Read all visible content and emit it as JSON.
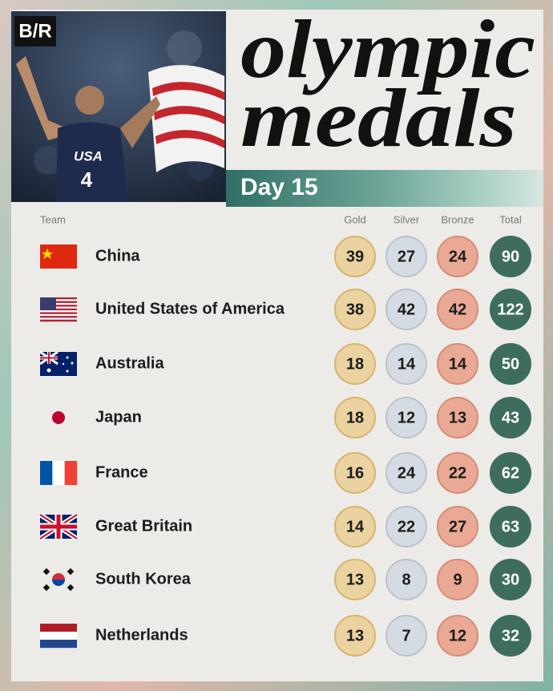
{
  "header": {
    "logo": "B/R",
    "title_line1": "olympic",
    "title_line2": "medals",
    "subtitle": "Day 15"
  },
  "photo": {
    "jersey_text": "USA",
    "jersey_number": "4"
  },
  "table": {
    "columns": [
      "Team",
      "Gold",
      "Silver",
      "Bronze",
      "Total"
    ],
    "rows": [
      {
        "team": "China",
        "gold": 39,
        "silver": 27,
        "bronze": 24,
        "total": 90
      },
      {
        "team": "United States of America",
        "gold": 38,
        "silver": 42,
        "bronze": 42,
        "total": 122
      },
      {
        "team": "Australia",
        "gold": 18,
        "silver": 14,
        "bronze": 14,
        "total": 50
      },
      {
        "team": "Japan",
        "gold": 18,
        "silver": 12,
        "bronze": 13,
        "total": 43
      },
      {
        "team": "France",
        "gold": 16,
        "silver": 24,
        "bronze": 22,
        "total": 62
      },
      {
        "team": "Great Britain",
        "gold": 14,
        "silver": 22,
        "bronze": 27,
        "total": 63
      },
      {
        "team": "South Korea",
        "gold": 13,
        "silver": 8,
        "bronze": 9,
        "total": 30
      },
      {
        "team": "Netherlands",
        "gold": 13,
        "silver": 7,
        "bronze": 12,
        "total": 32
      }
    ]
  }
}
